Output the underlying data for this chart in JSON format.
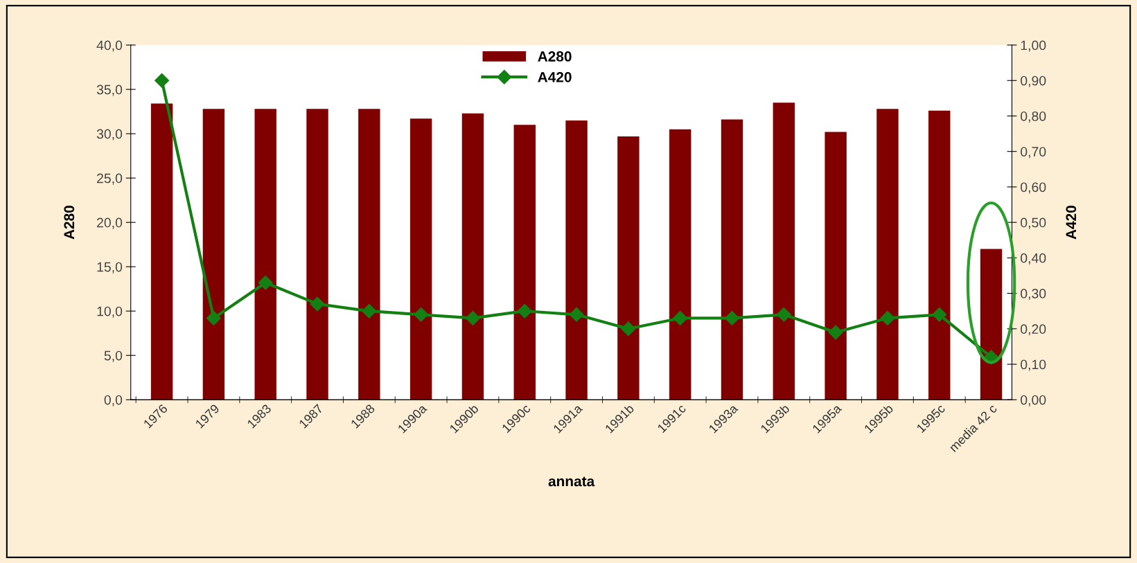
{
  "chart_data": {
    "type": "bar",
    "xlabel": "annata",
    "ylabel": "A280",
    "y2label": "A420",
    "categories": [
      "1976",
      "1979",
      "1983",
      "1987",
      "1988",
      "1990a",
      "1990b",
      "1990c",
      "1991a",
      "1991b",
      "1991c",
      "1993a",
      "1993b",
      "1995a",
      "1995b",
      "1995c",
      "media 42 c"
    ],
    "series": [
      {
        "name": "A280",
        "color": "#800000",
        "values": [
          33.4,
          32.8,
          32.8,
          32.8,
          32.8,
          31.7,
          32.3,
          31.0,
          31.5,
          29.7,
          30.5,
          31.6,
          33.5,
          30.2,
          32.8,
          32.6,
          17.0
        ]
      },
      {
        "name": "A420",
        "type": "line",
        "axis": "y2",
        "color": "#138013",
        "marker": "diamond",
        "values": [
          0.9,
          0.23,
          0.33,
          0.27,
          0.25,
          0.24,
          0.23,
          0.25,
          0.24,
          0.2,
          0.23,
          0.23,
          0.24,
          0.19,
          0.23,
          0.24,
          0.12
        ]
      }
    ],
    "ylim": [
      0,
      40
    ],
    "yticks": [
      {
        "value": 0,
        "label": "0,0"
      },
      {
        "value": 5,
        "label": "5,0"
      },
      {
        "value": 10,
        "label": "10,0"
      },
      {
        "value": 15,
        "label": "15,0"
      },
      {
        "value": 20,
        "label": "20,0"
      },
      {
        "value": 25,
        "label": "25,0"
      },
      {
        "value": 30,
        "label": "30,0"
      },
      {
        "value": 35,
        "label": "35,0"
      },
      {
        "value": 40,
        "label": "40,0"
      }
    ],
    "y2lim": [
      0,
      1
    ],
    "y2ticks": [
      {
        "value": 0,
        "label": "0,00"
      },
      {
        "value": 0.1,
        "label": "0,10"
      },
      {
        "value": 0.2,
        "label": "0,20"
      },
      {
        "value": 0.3,
        "label": "0,30"
      },
      {
        "value": 0.4,
        "label": "0,40"
      },
      {
        "value": 0.5,
        "label": "0,50"
      },
      {
        "value": 0.6,
        "label": "0,60"
      },
      {
        "value": 0.7,
        "label": "0,70"
      },
      {
        "value": 0.8,
        "label": "0,80"
      },
      {
        "value": 0.9,
        "label": "0,90"
      },
      {
        "value": 1.0,
        "label": "1,00"
      }
    ],
    "grid": false,
    "legend": "top"
  }
}
